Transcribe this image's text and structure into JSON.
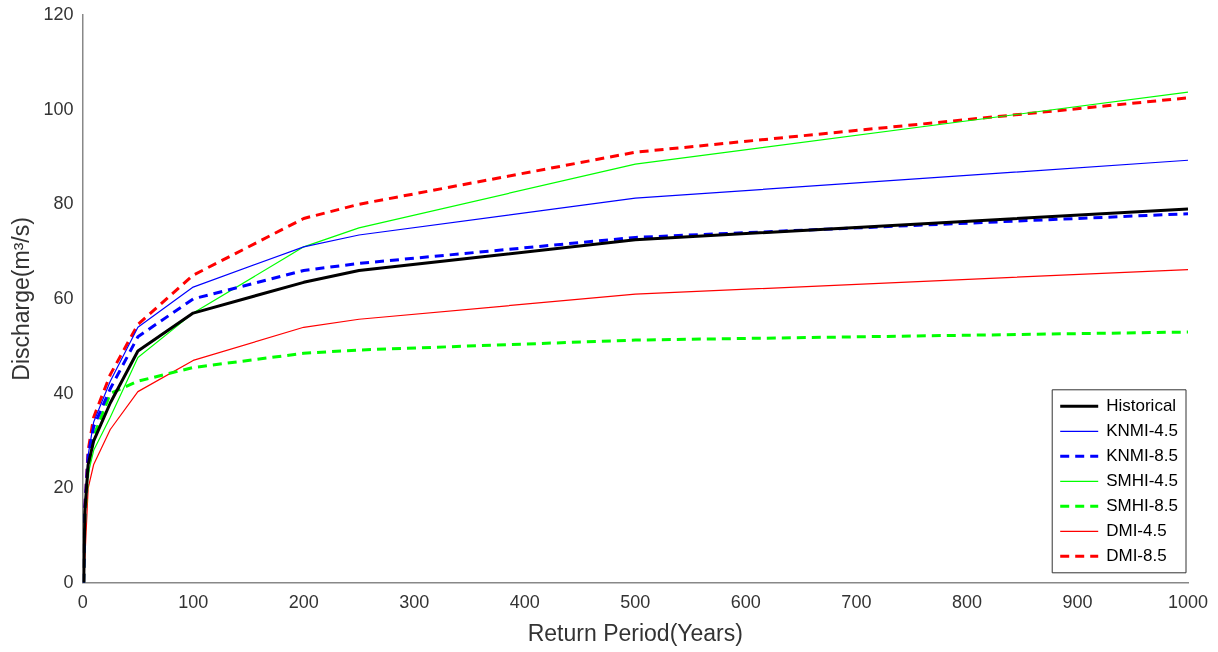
{
  "chart_data": {
    "type": "line",
    "xlabel": "Return Period(Years)",
    "ylabel": "Discharge(m³/s)",
    "x": [
      1,
      2,
      5,
      10,
      25,
      50,
      100,
      200,
      250,
      500,
      1000
    ],
    "xlim": [
      0,
      1000
    ],
    "xticks": [
      0,
      100,
      200,
      300,
      400,
      500,
      600,
      700,
      800,
      900,
      1000
    ],
    "ylim": [
      0,
      120
    ],
    "yticks": [
      0,
      20,
      40,
      60,
      80,
      100,
      120
    ],
    "grid": false,
    "legend": "bottom right",
    "marker": "none",
    "series": [
      {
        "name": "Historical",
        "color": "#000000",
        "line_style": "solid",
        "values": [
          0,
          15,
          25,
          30,
          38,
          49,
          57,
          63.5,
          66,
          72.5,
          79
        ]
      },
      {
        "name": "KNMI-4.5",
        "color": "#0000ff",
        "line_style": "solid",
        "values": [
          0,
          16,
          27,
          34,
          42.6,
          54,
          62.5,
          71,
          73.5,
          81.3,
          89.3
        ]
      },
      {
        "name": "KNMI-8.5",
        "color": "#0000ff",
        "line_style": "dashed",
        "values": [
          0,
          16,
          27,
          33,
          41,
          52,
          60,
          66,
          67.5,
          73,
          78
        ]
      },
      {
        "name": "SMHI-4.5",
        "color": "#00ff00",
        "line_style": "solid",
        "values": [
          0,
          14,
          23,
          28,
          35,
          47.6,
          57,
          71,
          75,
          88.5,
          103.7
        ]
      },
      {
        "name": "SMHI-8.5",
        "color": "#00ff00",
        "line_style": "dashed",
        "values": [
          0,
          14,
          24,
          31,
          40,
          42.6,
          45.5,
          48.5,
          49.2,
          51.3,
          53
        ]
      },
      {
        "name": "DMI-4.5",
        "color": "#ff0000",
        "line_style": "solid",
        "x": [
          1,
          5,
          10,
          25,
          50,
          100,
          200,
          250,
          500,
          1000
        ],
        "values": [
          0,
          20,
          25,
          32.4,
          40.4,
          47,
          54,
          55.7,
          61,
          66.2
        ]
      },
      {
        "name": "DMI-8.5",
        "color": "#ff0000",
        "line_style": "dashed",
        "values": [
          0,
          16,
          28,
          35,
          44,
          54.6,
          65,
          77,
          80,
          91,
          102.5
        ]
      }
    ]
  }
}
